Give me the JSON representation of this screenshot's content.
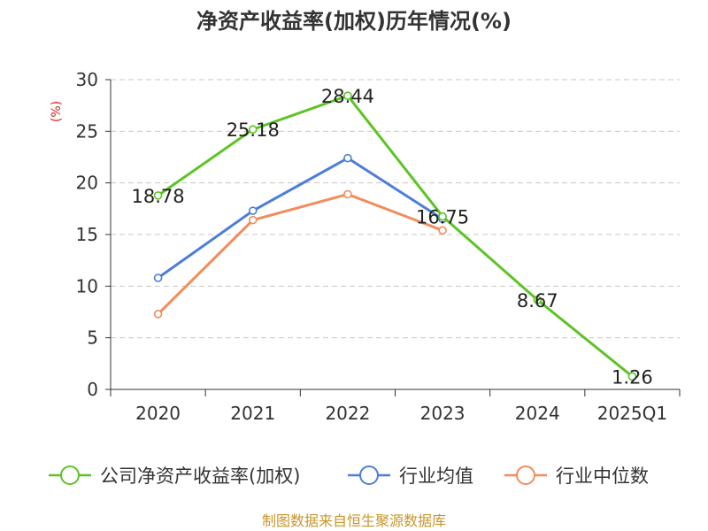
{
  "chart_data": {
    "type": "line",
    "title": "净资产收益率(加权)历年情况(%)",
    "unit_label": "(%)",
    "categories": [
      "2020",
      "2021",
      "2022",
      "2023",
      "2024",
      "2025Q1"
    ],
    "ylim": [
      0,
      30
    ],
    "yticks": [
      "0",
      "5",
      "10",
      "15",
      "20",
      "25",
      "30"
    ],
    "grid": true,
    "legend_position": "bottom",
    "series": [
      {
        "name": "公司净资产收益率(加权)",
        "color": "#5cc424",
        "values": [
          18.78,
          25.18,
          28.44,
          16.75,
          8.67,
          1.26
        ],
        "labels": [
          "18.78",
          "25.18",
          "28.44",
          "16.75",
          "8.67",
          "1.26"
        ]
      },
      {
        "name": "行业均值",
        "color": "#4c7ed9",
        "values": [
          10.8,
          17.3,
          22.4,
          16.5,
          null,
          null
        ]
      },
      {
        "name": "行业中位数",
        "color": "#f28c5b",
        "values": [
          7.3,
          16.4,
          18.9,
          15.4,
          null,
          null
        ]
      }
    ]
  },
  "footer": {
    "source": "制图数据来自恒生聚源数据库"
  }
}
